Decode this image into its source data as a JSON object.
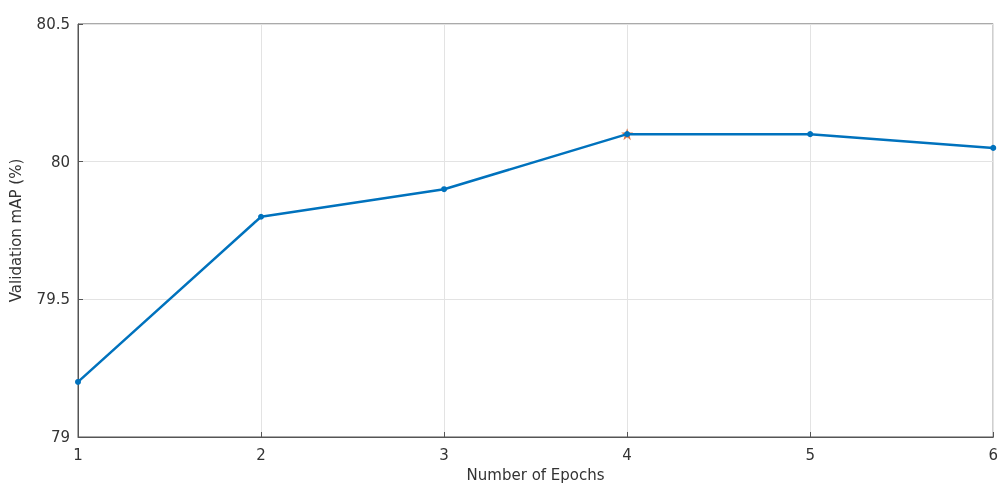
{
  "chart_data": {
    "type": "line",
    "xlabel": "Number of Epochs",
    "ylabel": "Validation mAP (%)",
    "x": [
      1,
      2,
      3,
      4,
      5,
      6
    ],
    "series": [
      {
        "color": "#0072bd",
        "marker": "circle",
        "values": [
          79.2,
          79.8,
          79.9,
          80.1,
          80.1,
          80.05
        ]
      },
      {
        "type": "scatter",
        "color": "#d95319",
        "marker": "star",
        "x": [
          4
        ],
        "values": [
          80.1
        ]
      }
    ],
    "xlim": [
      1,
      6
    ],
    "xticks": [
      1,
      2,
      3,
      4,
      5,
      6
    ],
    "ylim": [
      79,
      80.5
    ],
    "yticks": [
      79,
      79.5,
      80,
      80.5
    ],
    "grid": true,
    "line_style": "solid"
  }
}
